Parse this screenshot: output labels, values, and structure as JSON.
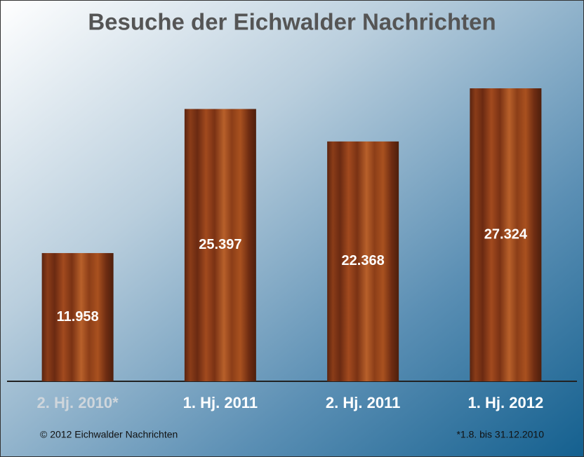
{
  "chart_data": {
    "type": "bar",
    "title": "Besuche der Eichwalder Nachrichten",
    "categories": [
      "2. Hj. 2010*",
      "1. Hj. 2011",
      "2. Hj. 2011",
      "1. Hj. 2012"
    ],
    "values": [
      11958,
      25397,
      22368,
      27324
    ],
    "value_labels": [
      "11.958",
      "25.397",
      "22.368",
      "27.324"
    ],
    "copyright": "© 2012 Eichwalder Nachrichten",
    "footnote": "*1.8. bis 31.12.2010"
  }
}
